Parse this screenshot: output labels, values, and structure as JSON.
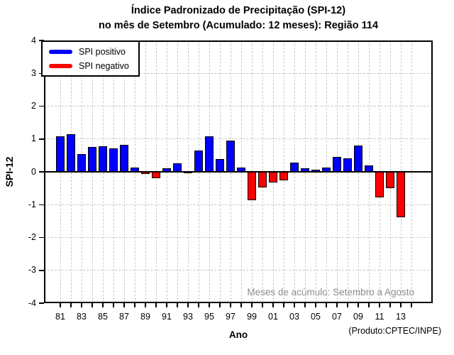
{
  "title_line1": "Índice Padronizado de Precipitação (SPI-12)",
  "title_line2": "no mês de Setembro (Acumulado: 12 meses): Região 114",
  "ylabel": "SPI-12",
  "xlabel": "Ano",
  "annotation": "Meses de acúmulo: Setembro a Agosto",
  "footer": "(Produto:CPTEC/INPE)",
  "legend": {
    "positive_label": "SPI positivo",
    "negative_label": "SPI negativo"
  },
  "colors": {
    "positive": "#0000ff",
    "negative": "#ff0000",
    "axis": "#000000",
    "grid": "#c9c9c9",
    "annotation": "#8c8c8c"
  },
  "chart_data": {
    "type": "bar",
    "title": "Índice Padronizado de Precipitação (SPI-12) no mês de Setembro (Acumulado: 12 meses): Região 114",
    "xlabel": "Ano",
    "ylabel": "SPI-12",
    "ylim": [
      -4,
      4
    ],
    "grid": true,
    "legend_position": "top-left",
    "series_name_positive": "SPI positivo",
    "series_name_negative": "SPI negativo",
    "years": [
      1981,
      1982,
      1983,
      1984,
      1985,
      1986,
      1987,
      1988,
      1989,
      1990,
      1991,
      1992,
      1993,
      1994,
      1995,
      1996,
      1997,
      1998,
      1999,
      2000,
      2001,
      2002,
      2003,
      2004,
      2005,
      2006,
      2007,
      2008,
      2009,
      2010,
      2011,
      2012,
      2013
    ],
    "values": [
      1.09,
      1.15,
      0.54,
      0.75,
      0.78,
      0.71,
      0.83,
      0.13,
      -0.07,
      -0.2,
      0.1,
      0.25,
      -0.05,
      0.64,
      1.08,
      0.38,
      0.96,
      0.12,
      -0.86,
      -0.47,
      -0.32,
      -0.27,
      0.29,
      0.1,
      0.06,
      0.12,
      0.46,
      0.42,
      0.79,
      0.2,
      -0.78,
      -0.5,
      -1.38
    ],
    "x_tick_years": [
      1981,
      1983,
      1985,
      1987,
      1989,
      1991,
      1993,
      1995,
      1997,
      1999,
      2001,
      2003,
      2005,
      2007,
      2009,
      2011,
      2013
    ],
    "x_tick_labels": [
      "81",
      "83",
      "85",
      "87",
      "89",
      "91",
      "93",
      "95",
      "97",
      "99",
      "01",
      "03",
      "05",
      "07",
      "09",
      "11",
      "13"
    ],
    "x_minor_tick_range": [
      1981,
      2014
    ],
    "y_ticks": [
      4,
      3,
      2,
      1,
      0,
      -1,
      -2,
      -3,
      -4
    ],
    "y_tick_labels": [
      "4",
      "3",
      "2",
      "1",
      "0",
      "-1",
      "-2",
      "-3",
      "-4"
    ],
    "y_gridlines": [
      3,
      2,
      1,
      -1,
      -2,
      -3
    ]
  }
}
